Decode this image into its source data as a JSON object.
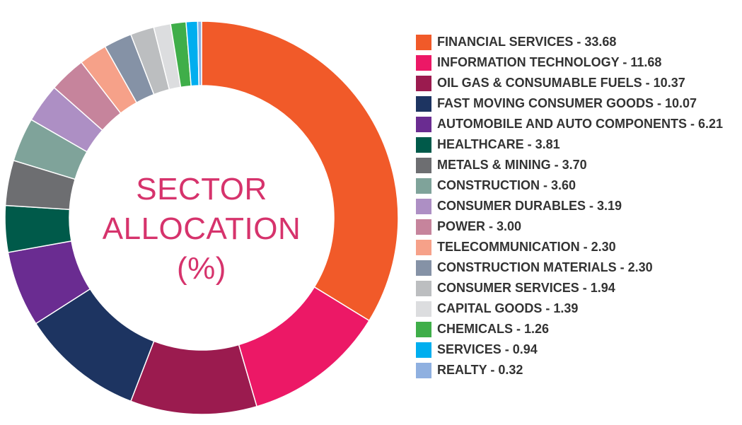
{
  "chart_data": {
    "type": "pie",
    "title": "SECTOR ALLOCATION (%)",
    "slices": [
      {
        "label": "FINANCIAL SERVICES - 33.68",
        "value": 33.68,
        "color": "#f15a29"
      },
      {
        "label": "INFORMATION TECHNOLOGY - 11.68",
        "value": 11.68,
        "color": "#ec1866"
      },
      {
        "label": "OIL GAS & CONSUMABLE FUELS - 10.37",
        "value": 10.37,
        "color": "#9b1b4f"
      },
      {
        "label": "FAST MOVING CONSUMER GOODS - 10.07",
        "value": 10.07,
        "color": "#1d3461"
      },
      {
        "label": "AUTOMOBILE AND AUTO COMPONENTS - 6.21",
        "value": 6.21,
        "color": "#6a2c91"
      },
      {
        "label": "HEALTHCARE - 3.81",
        "value": 3.81,
        "color": "#005a4a"
      },
      {
        "label": "METALS & MINING - 3.70",
        "value": 3.7,
        "color": "#6d6e71"
      },
      {
        "label": "CONSTRUCTION - 3.60",
        "value": 3.6,
        "color": "#7fa39a"
      },
      {
        "label": "CONSUMER DURABLES - 3.19",
        "value": 3.19,
        "color": "#ad8fc4"
      },
      {
        "label": "POWER - 3.00",
        "value": 3.0,
        "color": "#c6849c"
      },
      {
        "label": "TELECOMMUNICATION - 2.30",
        "value": 2.3,
        "color": "#f6a189"
      },
      {
        "label": "CONSTRUCTION MATERIALS - 2.30",
        "value": 2.3,
        "color": "#8592a6"
      },
      {
        "label": "CONSUMER SERVICES - 1.94",
        "value": 1.94,
        "color": "#bcbec0"
      },
      {
        "label": "CAPITAL GOODS  - 1.39",
        "value": 1.39,
        "color": "#dcdddf"
      },
      {
        "label": "CHEMICALS -  1.26",
        "value": 1.26,
        "color": "#3fae49"
      },
      {
        "label": "SERVICES -  0.94",
        "value": 0.94,
        "color": "#00aeef"
      },
      {
        "label": "REALTY  - 0.32",
        "value": 0.32,
        "color": "#8fb0e0"
      }
    ],
    "legend_position": "right",
    "center_title_lines": [
      "SECTOR",
      "ALLOCATION",
      "(%)"
    ],
    "center_title_color": "#d6336c"
  }
}
